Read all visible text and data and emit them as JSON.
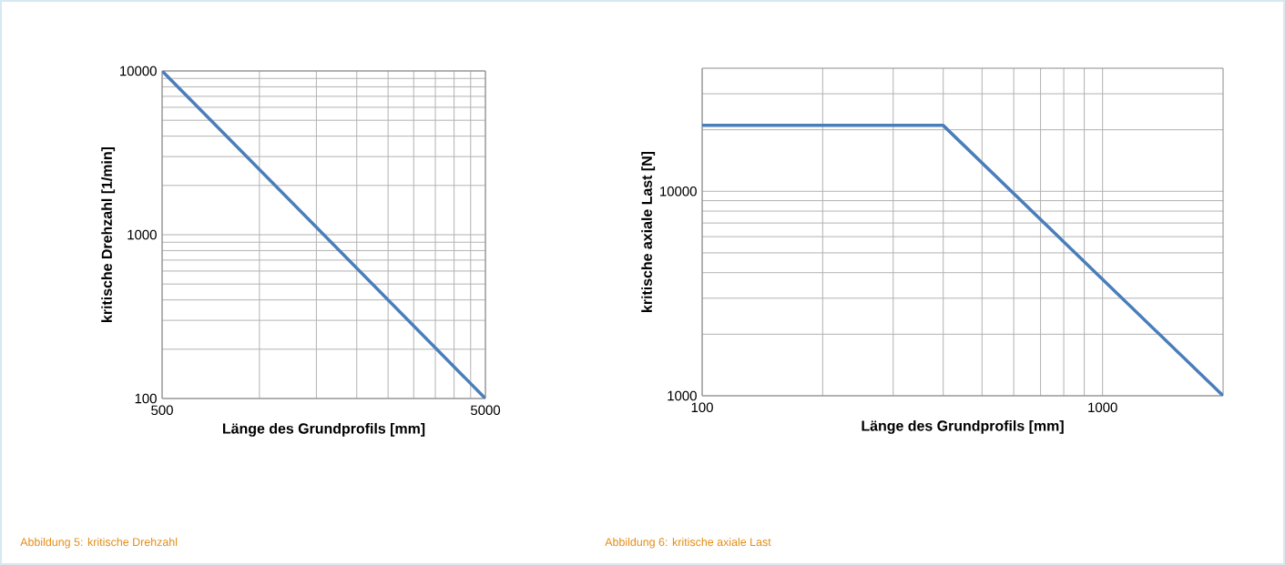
{
  "chart_data": [
    {
      "type": "line",
      "xlabel": "Länge des Grundprofils [mm]",
      "ylabel": "kritische Drehzahl [1/min]",
      "log": "xy",
      "grid": true,
      "color": "#4a7ebb",
      "x": [
        500,
        5000
      ],
      "values": [
        10000,
        100
      ],
      "xlim": [
        500,
        5000
      ],
      "ylim": [
        100,
        10000
      ],
      "xticks": [
        500,
        {
          "value": 1000,
          "label": null
        },
        {
          "value": 1500,
          "label": null
        },
        {
          "value": 2000,
          "label": null
        },
        {
          "value": 2500,
          "label": null
        },
        {
          "value": 3000,
          "label": null
        },
        {
          "value": 3500,
          "label": null
        },
        {
          "value": 4000,
          "label": null
        },
        {
          "value": 4500,
          "label": null
        },
        5000
      ],
      "yticks": [
        100,
        {
          "value": 200,
          "label": null
        },
        {
          "value": 300,
          "label": null
        },
        {
          "value": 400,
          "label": null
        },
        {
          "value": 500,
          "label": null
        },
        {
          "value": 600,
          "label": null
        },
        {
          "value": 700,
          "label": null
        },
        {
          "value": 800,
          "label": null
        },
        {
          "value": 900,
          "label": null
        },
        1000,
        {
          "value": 2000,
          "label": null
        },
        {
          "value": 3000,
          "label": null
        },
        {
          "value": 4000,
          "label": null
        },
        {
          "value": 5000,
          "label": null
        },
        {
          "value": 6000,
          "label": null
        },
        {
          "value": 7000,
          "label": null
        },
        {
          "value": 8000,
          "label": null
        },
        {
          "value": 9000,
          "label": null
        },
        10000
      ],
      "annotations": [
        "Abbildung 5: kritische Drehzahl"
      ]
    },
    {
      "type": "line",
      "xlabel": "Länge des Grundprofils [mm]",
      "ylabel": "kritische axiale Last [N]",
      "log": "xy",
      "grid": true,
      "color": "#4a7ebb",
      "x": [
        100,
        400,
        2000
      ],
      "values": [
        21000,
        21000,
        1000
      ],
      "xlim": [
        100,
        2000
      ],
      "ylim": [
        1000,
        40000
      ],
      "xticks": [
        100,
        {
          "value": 200,
          "label": null
        },
        {
          "value": 300,
          "label": null
        },
        {
          "value": 400,
          "label": null
        },
        {
          "value": 500,
          "label": null
        },
        {
          "value": 600,
          "label": null
        },
        {
          "value": 700,
          "label": null
        },
        {
          "value": 800,
          "label": null
        },
        {
          "value": 900,
          "label": null
        },
        1000
      ],
      "yticks": [
        1000,
        {
          "value": 2000,
          "label": null
        },
        {
          "value": 3000,
          "label": null
        },
        {
          "value": 4000,
          "label": null
        },
        {
          "value": 5000,
          "label": null
        },
        {
          "value": 6000,
          "label": null
        },
        {
          "value": 7000,
          "label": null
        },
        {
          "value": 8000,
          "label": null
        },
        {
          "value": 9000,
          "label": null
        },
        10000,
        {
          "value": 20000,
          "label": null
        },
        {
          "value": 30000,
          "label": null
        }
      ],
      "annotations": [
        "Abbildung 6: kritische axiale Last"
      ]
    }
  ]
}
